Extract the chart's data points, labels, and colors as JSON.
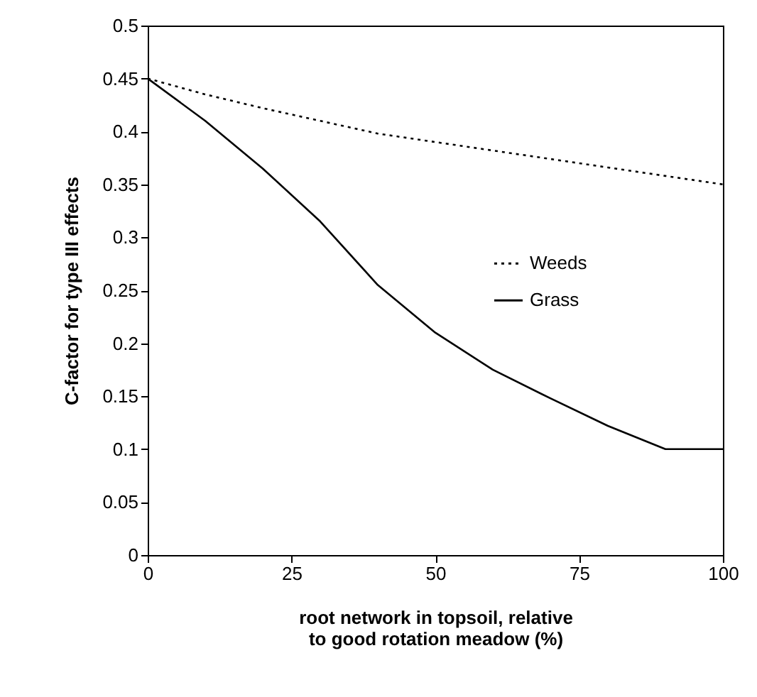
{
  "chart_data": {
    "type": "line",
    "xlabel": "root network in topsoil, relative to good rotation meadow (%)",
    "ylabel": "C-factor for type III effects",
    "x": [
      0,
      10,
      20,
      30,
      40,
      50,
      60,
      70,
      80,
      90,
      100
    ],
    "series": [
      {
        "name": "Weeds",
        "color": "#000000",
        "line_style": "dotted",
        "values": [
          0.45,
          0.435,
          0.422,
          0.41,
          0.398,
          0.39,
          0.382,
          0.374,
          0.366,
          0.358,
          0.35
        ]
      },
      {
        "name": "Grass",
        "color": "#000000",
        "line_style": "solid",
        "values": [
          0.45,
          0.41,
          0.365,
          0.315,
          0.255,
          0.21,
          0.175,
          0.148,
          0.122,
          0.1,
          0.1
        ]
      }
    ],
    "xlim": [
      0,
      100
    ],
    "xticks": [
      0,
      25,
      50,
      75,
      100
    ],
    "ylim": [
      0,
      0.5
    ],
    "yticks": [
      0,
      0.05,
      0.1,
      0.15,
      0.2,
      0.25,
      0.3,
      0.35,
      0.4,
      0.45,
      0.5
    ],
    "grid": false,
    "legend": "right",
    "marker": "none"
  }
}
